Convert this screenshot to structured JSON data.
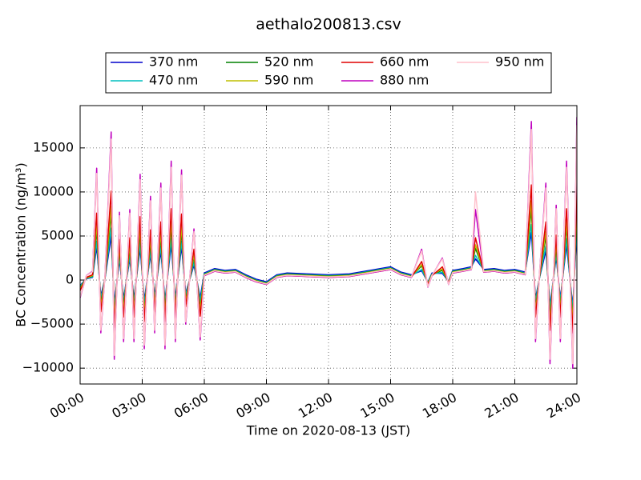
{
  "chart_data": {
    "type": "line",
    "title": "aethalo200813.csv",
    "x_label": "Time on 2020-08-13 (JST)",
    "y_label": "BC Concentration (ng/m³)",
    "x": [
      0,
      0.3,
      0.6,
      0.8,
      1.0,
      1.2,
      1.5,
      1.65,
      1.9,
      2.1,
      2.4,
      2.6,
      2.9,
      3.1,
      3.4,
      3.6,
      3.9,
      4.1,
      4.4,
      4.6,
      4.9,
      5.1,
      5.5,
      5.8,
      6.0,
      6.5,
      7,
      7.5,
      8,
      8.5,
      9,
      9.5,
      10,
      11,
      12,
      13,
      14,
      15,
      15.5,
      16,
      16.5,
      16.8,
      17.0,
      17.5,
      17.8,
      18,
      18.5,
      18.9,
      19.1,
      19.5,
      20,
      20.5,
      21,
      21.5,
      21.8,
      22.0,
      22.2,
      22.5,
      22.7,
      23.0,
      23.2,
      23.5,
      23.8,
      24.0
    ],
    "series": [
      {
        "name": "370 nm",
        "color": "#0000cc",
        "values": [
          -600,
          150,
          300,
          3800,
          -1800,
          150,
          5000,
          -2700,
          2300,
          -2100,
          2400,
          -2100,
          3600,
          -2300,
          2900,
          -1800,
          3300,
          -2300,
          4000,
          -2100,
          3800,
          -1500,
          1700,
          -2000,
          800,
          1300,
          1100,
          1200,
          600,
          100,
          -200,
          600,
          800,
          700,
          600,
          700,
          1100,
          1500,
          900,
          600,
          1050,
          -240,
          800,
          750,
          -150,
          1100,
          1300,
          1500,
          2400,
          1200,
          1300,
          1100,
          1200,
          900,
          5400,
          -2100,
          300,
          3300,
          -2900,
          2600,
          -2100,
          4000,
          -3000,
          5600
        ]
      },
      {
        "name": "470 nm",
        "color": "#00bfbf",
        "values": [
          -700,
          180,
          350,
          4400,
          -2100,
          180,
          5900,
          -3150,
          2700,
          -2450,
          2800,
          -2450,
          4200,
          -2700,
          3300,
          -2100,
          3850,
          -2700,
          4700,
          -2450,
          4400,
          -1750,
          2000,
          -2400,
          700,
          1200,
          1000,
          1100,
          500,
          0,
          -300,
          500,
          700,
          600,
          500,
          600,
          1000,
          1400,
          800,
          500,
          1200,
          -280,
          700,
          880,
          -180,
          1000,
          1200,
          1400,
          2800,
          1100,
          1200,
          1000,
          1100,
          800,
          6300,
          -2450,
          350,
          3850,
          -3300,
          3000,
          -2450,
          4700,
          -3500,
          6500
        ]
      },
      {
        "name": "520 nm",
        "color": "#008000",
        "values": [
          -900,
          230,
          450,
          5700,
          -2700,
          230,
          7600,
          -4000,
          3500,
          -3150,
          3600,
          -3150,
          5400,
          -3500,
          4300,
          -2700,
          5000,
          -3500,
          6100,
          -3150,
          5600,
          -2250,
          2600,
          -3100,
          650,
          1150,
          950,
          1050,
          450,
          -50,
          -350,
          450,
          650,
          550,
          450,
          550,
          950,
          1350,
          750,
          450,
          1600,
          -360,
          650,
          1100,
          -230,
          950,
          1150,
          1350,
          3600,
          1050,
          1150,
          950,
          1050,
          750,
          8100,
          -3150,
          450,
          5000,
          -4300,
          3800,
          -3150,
          6100,
          -4500,
          8300
        ]
      },
      {
        "name": "590 nm",
        "color": "#bfbf00",
        "values": [
          -1000,
          250,
          500,
          6350,
          -3000,
          250,
          8400,
          -4500,
          3850,
          -3500,
          4000,
          -3500,
          6000,
          -3900,
          4750,
          -3000,
          5500,
          -3900,
          6750,
          -3500,
          6250,
          -2500,
          2900,
          -3400,
          600,
          1100,
          900,
          1000,
          400,
          -100,
          -400,
          400,
          600,
          500,
          400,
          500,
          900,
          1300,
          700,
          400,
          1750,
          -400,
          600,
          1250,
          -250,
          900,
          1100,
          1300,
          4000,
          1000,
          1100,
          900,
          1000,
          700,
          9000,
          -3500,
          500,
          5500,
          -4750,
          4250,
          -3500,
          6750,
          -5000,
          9250
        ]
      },
      {
        "name": "660 nm",
        "color": "#e00000",
        "values": [
          -1200,
          300,
          600,
          7600,
          -3600,
          300,
          10100,
          -5400,
          4600,
          -4200,
          4800,
          -4200,
          7200,
          -4700,
          5700,
          -3600,
          6600,
          -4700,
          8100,
          -4200,
          7500,
          -3000,
          3500,
          -4100,
          500,
          1000,
          800,
          900,
          300,
          -200,
          -500,
          300,
          500,
          400,
          300,
          400,
          800,
          1200,
          600,
          300,
          2100,
          -480,
          500,
          1500,
          -300,
          800,
          1000,
          1200,
          4800,
          900,
          1000,
          800,
          900,
          600,
          10800,
          -4200,
          600,
          6600,
          -5700,
          5100,
          -4200,
          8100,
          -6000,
          11100
        ]
      },
      {
        "name": "880 nm",
        "color": "#bf00bf",
        "values": [
          -2000,
          500,
          1000,
          12700,
          -6000,
          500,
          16800,
          -9000,
          7700,
          -7000,
          8000,
          -7000,
          12000,
          -7800,
          9500,
          -6000,
          11000,
          -7800,
          13500,
          -7000,
          12500,
          -5000,
          5800,
          -6800,
          500,
          1000,
          800,
          900,
          300,
          -200,
          -500,
          300,
          500,
          400,
          300,
          400,
          800,
          1200,
          600,
          300,
          3500,
          -800,
          500,
          2500,
          -500,
          800,
          1000,
          1200,
          8000,
          900,
          1000,
          800,
          900,
          600,
          18000,
          -7000,
          1000,
          11000,
          -9500,
          8500,
          -7000,
          13500,
          -10000,
          18500
        ]
      },
      {
        "name": "950 nm",
        "color": "#ffc0cb",
        "values": [
          -1900,
          480,
          950,
          12100,
          -5700,
          480,
          16000,
          -8550,
          7300,
          -6650,
          7600,
          -6650,
          11400,
          -7400,
          9000,
          -5700,
          10450,
          -7400,
          12800,
          -6650,
          11900,
          -4750,
          5500,
          -6450,
          550,
          1050,
          850,
          950,
          350,
          -150,
          -450,
          350,
          550,
          450,
          350,
          450,
          850,
          1250,
          650,
          350,
          3300,
          -760,
          550,
          2400,
          -480,
          850,
          1050,
          1250,
          10000,
          950,
          1050,
          850,
          950,
          650,
          17100,
          -6650,
          950,
          10450,
          -9000,
          8100,
          -6650,
          12800,
          -9500,
          17600
        ]
      }
    ],
    "xlim": [
      0,
      24
    ],
    "xticks": [
      {
        "value": 0,
        "label": "00:00"
      },
      {
        "value": 3,
        "label": "03:00"
      },
      {
        "value": 6,
        "label": "06:00"
      },
      {
        "value": 9,
        "label": "09:00"
      },
      {
        "value": 12,
        "label": "12:00"
      },
      {
        "value": 15,
        "label": "15:00"
      },
      {
        "value": 18,
        "label": "18:00"
      },
      {
        "value": 21,
        "label": "21:00"
      },
      {
        "value": 24,
        "label": "24:00"
      }
    ],
    "ylim": [
      -11800,
      19800
    ],
    "yticks": [
      {
        "value": -10000,
        "label": "−10000"
      },
      {
        "value": -5000,
        "label": "−5000"
      },
      0,
      5000,
      10000,
      15000
    ],
    "grid": true,
    "legend": "above"
  }
}
